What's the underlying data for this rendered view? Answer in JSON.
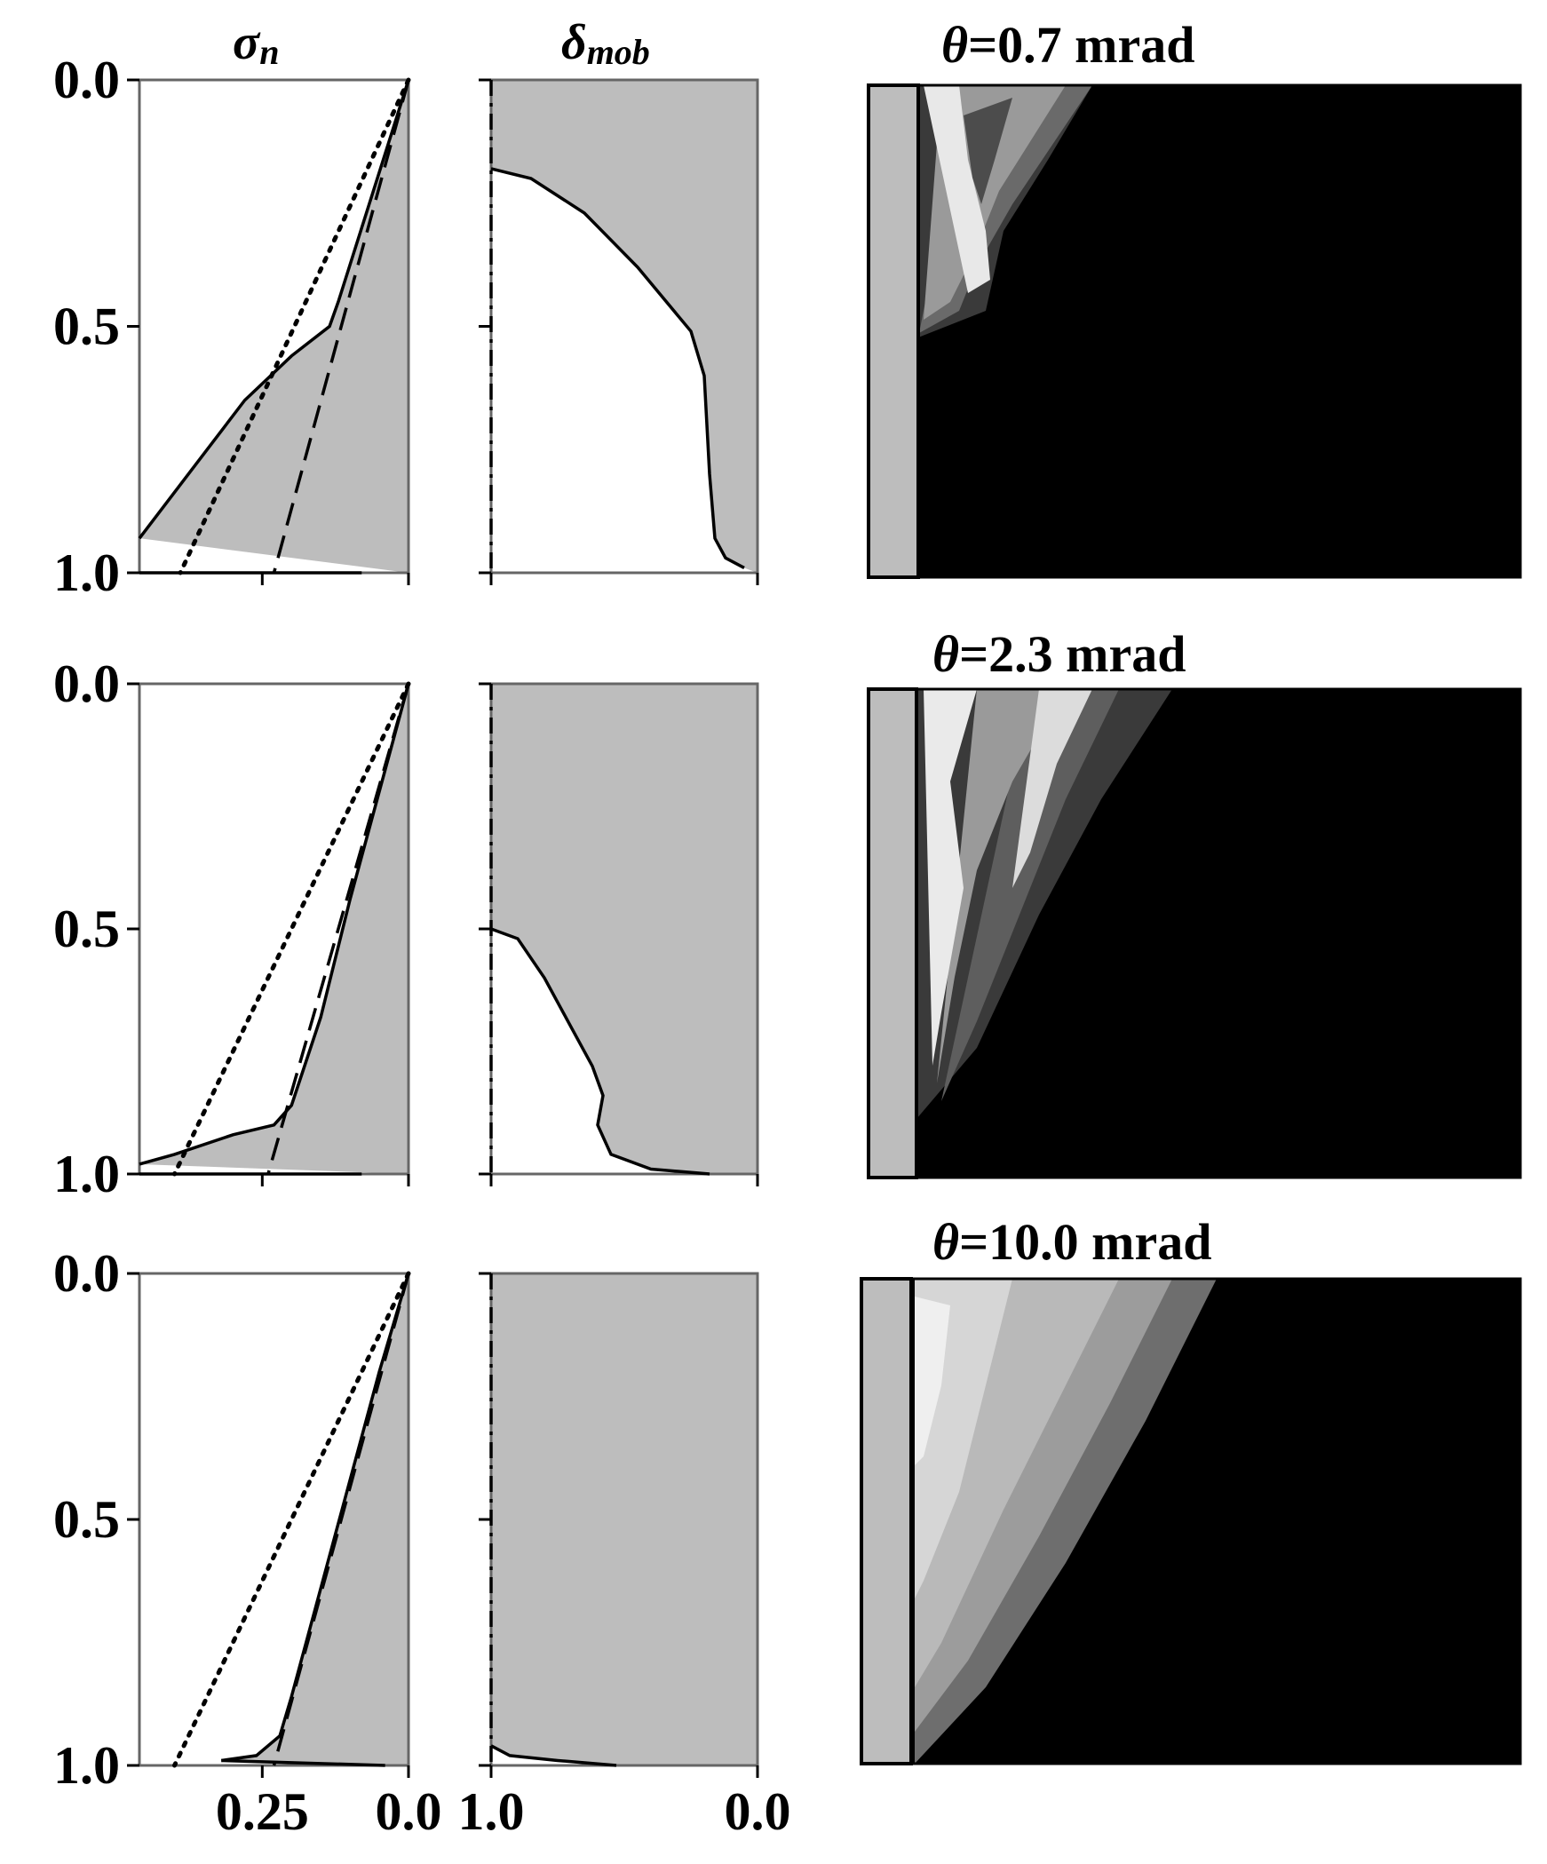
{
  "colors": {
    "fill_gray": "#bdbdbd",
    "frame": "#666666",
    "map_background": "#000000",
    "wall_gray": "#bdbdbd"
  },
  "axis": {
    "y_tick_labels": [
      "0.0",
      "0.5",
      "1.0"
    ],
    "y_ticks": [
      0.0,
      0.5,
      1.0
    ],
    "sigma_x_tick_labels": [
      "0.25",
      "0.0"
    ],
    "sigma_x_ticks": [
      0.25,
      0.0
    ],
    "delta_x_tick_labels": [
      "1.0",
      "0.0"
    ],
    "delta_x_ticks": [
      1.0,
      0.0
    ]
  },
  "columns": {
    "sigma_title": {
      "symbol": "σ",
      "sub": "n"
    },
    "delta_title": {
      "symbol": "δ",
      "sub": "mob"
    }
  },
  "chart_data": [
    {
      "type": "line",
      "panel": "sigma_n row 1",
      "xlim": [
        0.46,
        0.0
      ],
      "ylim": [
        0.0,
        1.0
      ],
      "series": [
        {
          "style": "solid",
          "points": [
            [
              0.0,
              0.0
            ],
            [
              0.04,
              0.15
            ],
            [
              0.08,
              0.3
            ],
            [
              0.12,
              0.45
            ],
            [
              0.135,
              0.5
            ],
            [
              0.2,
              0.56
            ],
            [
              0.28,
              0.65
            ],
            [
              0.37,
              0.79
            ],
            [
              0.46,
              0.93
            ]
          ]
        },
        {
          "style": "solid",
          "points": [
            [
              0.46,
              1.0
            ],
            [
              0.08,
              1.0
            ]
          ]
        },
        {
          "style": "dashed",
          "points": [
            [
              0.0,
              0.0
            ],
            [
              0.23,
              1.0
            ]
          ]
        },
        {
          "style": "dotted",
          "points": [
            [
              0.0,
              0.0
            ],
            [
              0.39,
              1.0
            ]
          ]
        }
      ]
    },
    {
      "type": "line",
      "panel": "delta_mob row 1",
      "xlim": [
        1.0,
        0.0
      ],
      "ylim": [
        0.0,
        1.0
      ],
      "series": [
        {
          "style": "solid",
          "points": [
            [
              1.0,
              0.18
            ],
            [
              0.85,
              0.2
            ],
            [
              0.65,
              0.27
            ],
            [
              0.45,
              0.38
            ],
            [
              0.25,
              0.51
            ],
            [
              0.2,
              0.6
            ],
            [
              0.19,
              0.7
            ],
            [
              0.18,
              0.8
            ],
            [
              0.16,
              0.93
            ],
            [
              0.12,
              0.97
            ],
            [
              0.05,
              0.99
            ]
          ]
        },
        {
          "style": "dashdot",
          "points": [
            [
              1.0,
              0.0
            ],
            [
              1.0,
              1.0
            ]
          ]
        }
      ]
    },
    {
      "type": "line",
      "panel": "sigma_n row 2",
      "xlim": [
        0.46,
        0.0
      ],
      "ylim": [
        0.0,
        1.0
      ],
      "series": [
        {
          "style": "solid",
          "points": [
            [
              0.0,
              0.0
            ],
            [
              0.05,
              0.22
            ],
            [
              0.1,
              0.44
            ],
            [
              0.15,
              0.68
            ],
            [
              0.2,
              0.86
            ],
            [
              0.23,
              0.9
            ],
            [
              0.3,
              0.92
            ],
            [
              0.4,
              0.96
            ],
            [
              0.46,
              0.98
            ]
          ]
        },
        {
          "style": "solid",
          "points": [
            [
              0.46,
              1.0
            ],
            [
              0.08,
              1.0
            ]
          ]
        },
        {
          "style": "dashed",
          "points": [
            [
              0.0,
              0.0
            ],
            [
              0.24,
              1.0
            ]
          ]
        },
        {
          "style": "dotted",
          "points": [
            [
              0.0,
              0.0
            ],
            [
              0.4,
              1.0
            ]
          ]
        }
      ]
    },
    {
      "type": "line",
      "panel": "delta_mob row 2",
      "xlim": [
        1.0,
        0.0
      ],
      "ylim": [
        0.0,
        1.0
      ],
      "series": [
        {
          "style": "solid",
          "points": [
            [
              1.0,
              0.5
            ],
            [
              0.9,
              0.52
            ],
            [
              0.8,
              0.6
            ],
            [
              0.7,
              0.7
            ],
            [
              0.62,
              0.78
            ],
            [
              0.58,
              0.84
            ],
            [
              0.6,
              0.9
            ],
            [
              0.55,
              0.96
            ],
            [
              0.4,
              0.99
            ],
            [
              0.18,
              1.0
            ]
          ]
        },
        {
          "style": "dashdot",
          "points": [
            [
              1.0,
              0.0
            ],
            [
              1.0,
              1.0
            ]
          ]
        }
      ]
    },
    {
      "type": "line",
      "panel": "sigma_n row 3",
      "xlim": [
        0.46,
        0.0
      ],
      "ylim": [
        0.0,
        1.0
      ],
      "series": [
        {
          "style": "solid",
          "points": [
            [
              0.0,
              0.0
            ],
            [
              0.05,
              0.2
            ],
            [
              0.1,
              0.42
            ],
            [
              0.15,
              0.64
            ],
            [
              0.2,
              0.86
            ],
            [
              0.22,
              0.94
            ],
            [
              0.26,
              0.98
            ],
            [
              0.32,
              0.99
            ]
          ]
        },
        {
          "style": "solid",
          "points": [
            [
              0.32,
              0.99
            ],
            [
              0.04,
              1.0
            ]
          ]
        },
        {
          "style": "dashed",
          "points": [
            [
              0.0,
              0.0
            ],
            [
              0.23,
              1.0
            ]
          ]
        },
        {
          "style": "dotted",
          "points": [
            [
              0.0,
              0.0
            ],
            [
              0.4,
              1.0
            ]
          ]
        }
      ]
    },
    {
      "type": "line",
      "panel": "delta_mob row 3",
      "xlim": [
        1.0,
        0.0
      ],
      "ylim": [
        0.0,
        1.0
      ],
      "series": [
        {
          "style": "solid",
          "points": [
            [
              1.0,
              0.96
            ],
            [
              0.93,
              0.98
            ],
            [
              0.75,
              0.99
            ],
            [
              0.53,
              1.0
            ]
          ]
        },
        {
          "style": "dashdot",
          "points": [
            [
              1.0,
              0.0
            ],
            [
              1.0,
              1.0
            ]
          ]
        }
      ]
    },
    {
      "type": "heatmap",
      "panel": "contour row 1",
      "title": {
        "symbol": "θ",
        "text": "=0.7 mrad"
      },
      "colormap": "grayscale contour, black background"
    },
    {
      "type": "heatmap",
      "panel": "contour row 2",
      "title": {
        "symbol": "θ",
        "text": "=2.3 mrad"
      },
      "colormap": "grayscale contour, black background"
    },
    {
      "type": "heatmap",
      "panel": "contour row 3",
      "title": {
        "symbol": "θ",
        "text": "=10.0 mrad"
      },
      "colormap": "grayscale contour, black background"
    }
  ]
}
